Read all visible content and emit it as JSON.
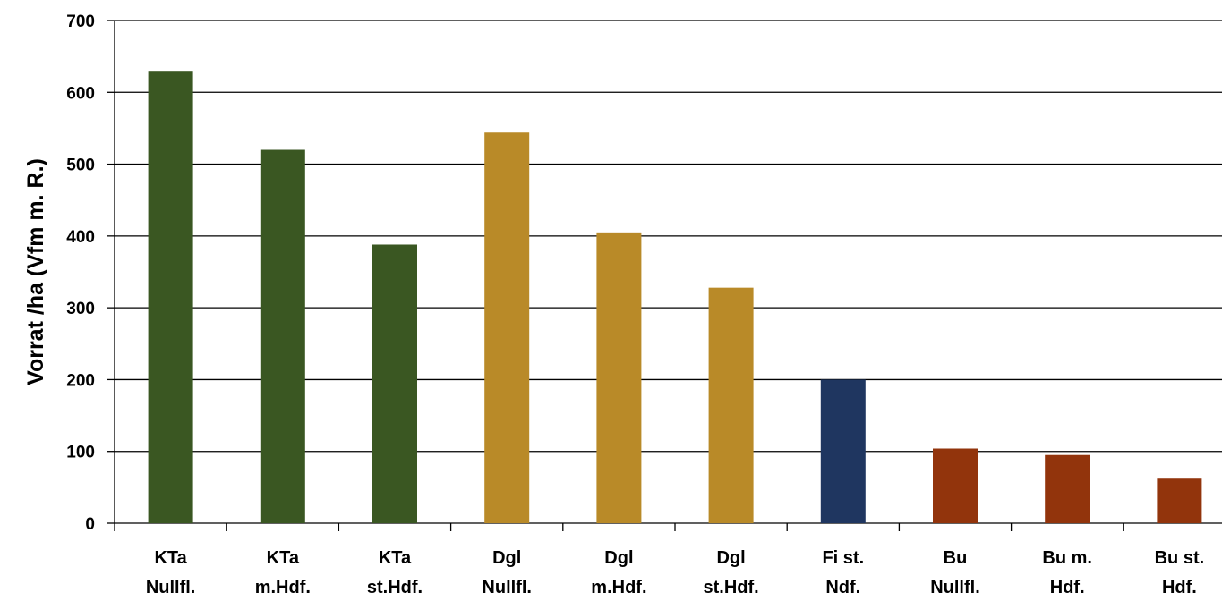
{
  "chart_data": {
    "type": "bar",
    "categories": [
      [
        "KTa",
        "Nullfl."
      ],
      [
        "KTa",
        "m.Hdf."
      ],
      [
        "KTa",
        "st.Hdf."
      ],
      [
        "Dgl",
        "Nullfl."
      ],
      [
        "Dgl",
        "m.Hdf."
      ],
      [
        "Dgl",
        "st.Hdf."
      ],
      [
        "Fi st.",
        "Ndf."
      ],
      [
        "Bu",
        "Nullfl."
      ],
      [
        "Bu m.",
        "Hdf."
      ],
      [
        "Bu st.",
        "Hdf."
      ]
    ],
    "values": [
      630,
      520,
      388,
      544,
      405,
      328,
      200,
      104,
      95,
      62
    ],
    "colors": [
      "#3a5722",
      "#3a5722",
      "#3a5722",
      "#b98a28",
      "#b98a28",
      "#b98a28",
      "#1f3660",
      "#92340c",
      "#92340c",
      "#92340c"
    ],
    "title": "",
    "xlabel": "",
    "ylabel": "Vorrat /ha (Vfm m. R.)",
    "ylim": [
      0,
      700
    ],
    "yticks": [
      0,
      100,
      200,
      300,
      400,
      500,
      600,
      700
    ],
    "grid": true
  }
}
